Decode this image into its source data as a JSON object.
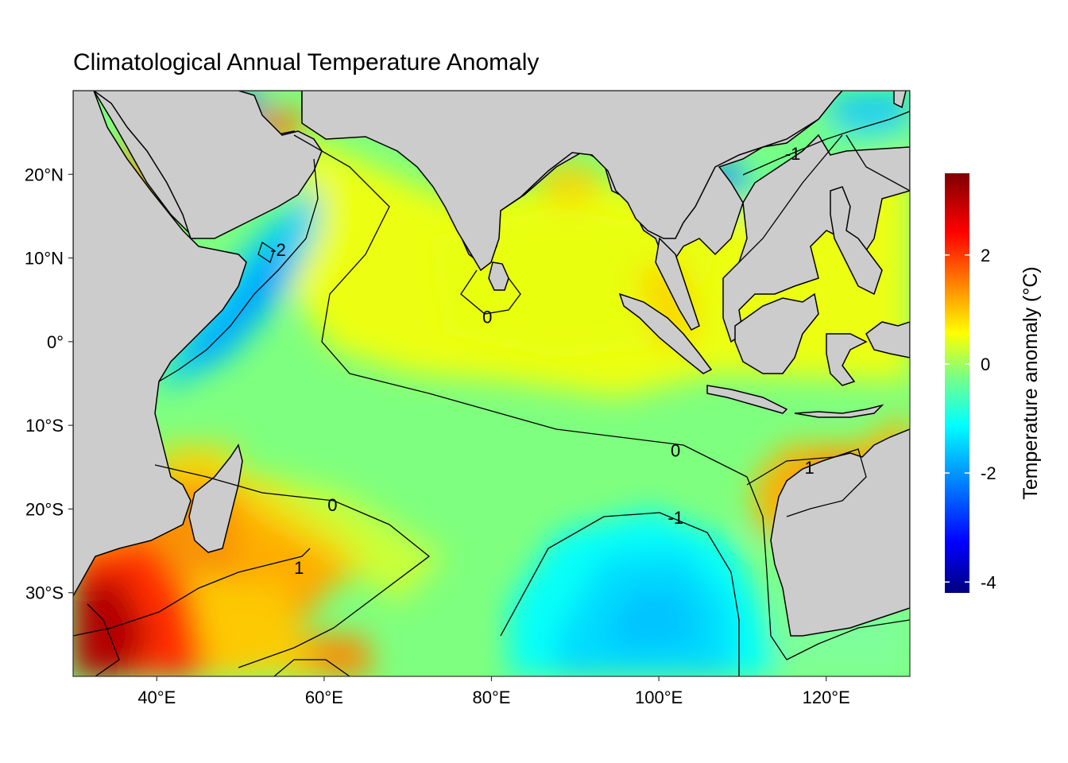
{
  "title": "Climatological Annual Temperature Anomaly",
  "map": {
    "lon_range": [
      30,
      130
    ],
    "lat_range": [
      -40,
      30
    ],
    "x_ticks": [
      {
        "lon": 40,
        "label": "40°E"
      },
      {
        "lon": 60,
        "label": "60°E"
      },
      {
        "lon": 80,
        "label": "80°E"
      },
      {
        "lon": 100,
        "label": "100°E"
      },
      {
        "lon": 120,
        "label": "120°E"
      }
    ],
    "y_ticks": [
      {
        "lat": 20,
        "label": "20°N"
      },
      {
        "lat": 10,
        "label": "10°N"
      },
      {
        "lat": 0,
        "label": "0°"
      },
      {
        "lat": -10,
        "label": "10°S"
      },
      {
        "lat": -20,
        "label": "20°S"
      },
      {
        "lat": -30,
        "label": "30°S"
      }
    ],
    "land_color": "#cccccc",
    "contour_labels": [
      {
        "text": "-2",
        "lon": 54.5,
        "lat": 11
      },
      {
        "text": "0",
        "lon": 79.5,
        "lat": 3
      },
      {
        "text": "0",
        "lon": 102,
        "lat": -13
      },
      {
        "text": "0",
        "lon": 61,
        "lat": -19.5
      },
      {
        "text": "-1",
        "lon": 102,
        "lat": -21
      },
      {
        "text": "1",
        "lon": 57,
        "lat": -27
      },
      {
        "text": "1",
        "lon": 118,
        "lat": -15
      },
      {
        "text": "-1",
        "lon": 116,
        "lat": 22.5
      }
    ]
  },
  "legend": {
    "title": "Temperature anomaly (°C)",
    "range": [
      -4.2,
      3.5
    ],
    "ticks": [
      {
        "value": 2,
        "label": "2"
      },
      {
        "value": 0,
        "label": "0"
      },
      {
        "value": -2,
        "label": "-2"
      },
      {
        "value": -4,
        "label": "-4"
      }
    ],
    "colors": [
      "#00007f",
      "#0000ff",
      "#007fff",
      "#00ffff",
      "#7fff7f",
      "#ffff00",
      "#ff7f00",
      "#ff0000",
      "#7f0000"
    ]
  }
}
